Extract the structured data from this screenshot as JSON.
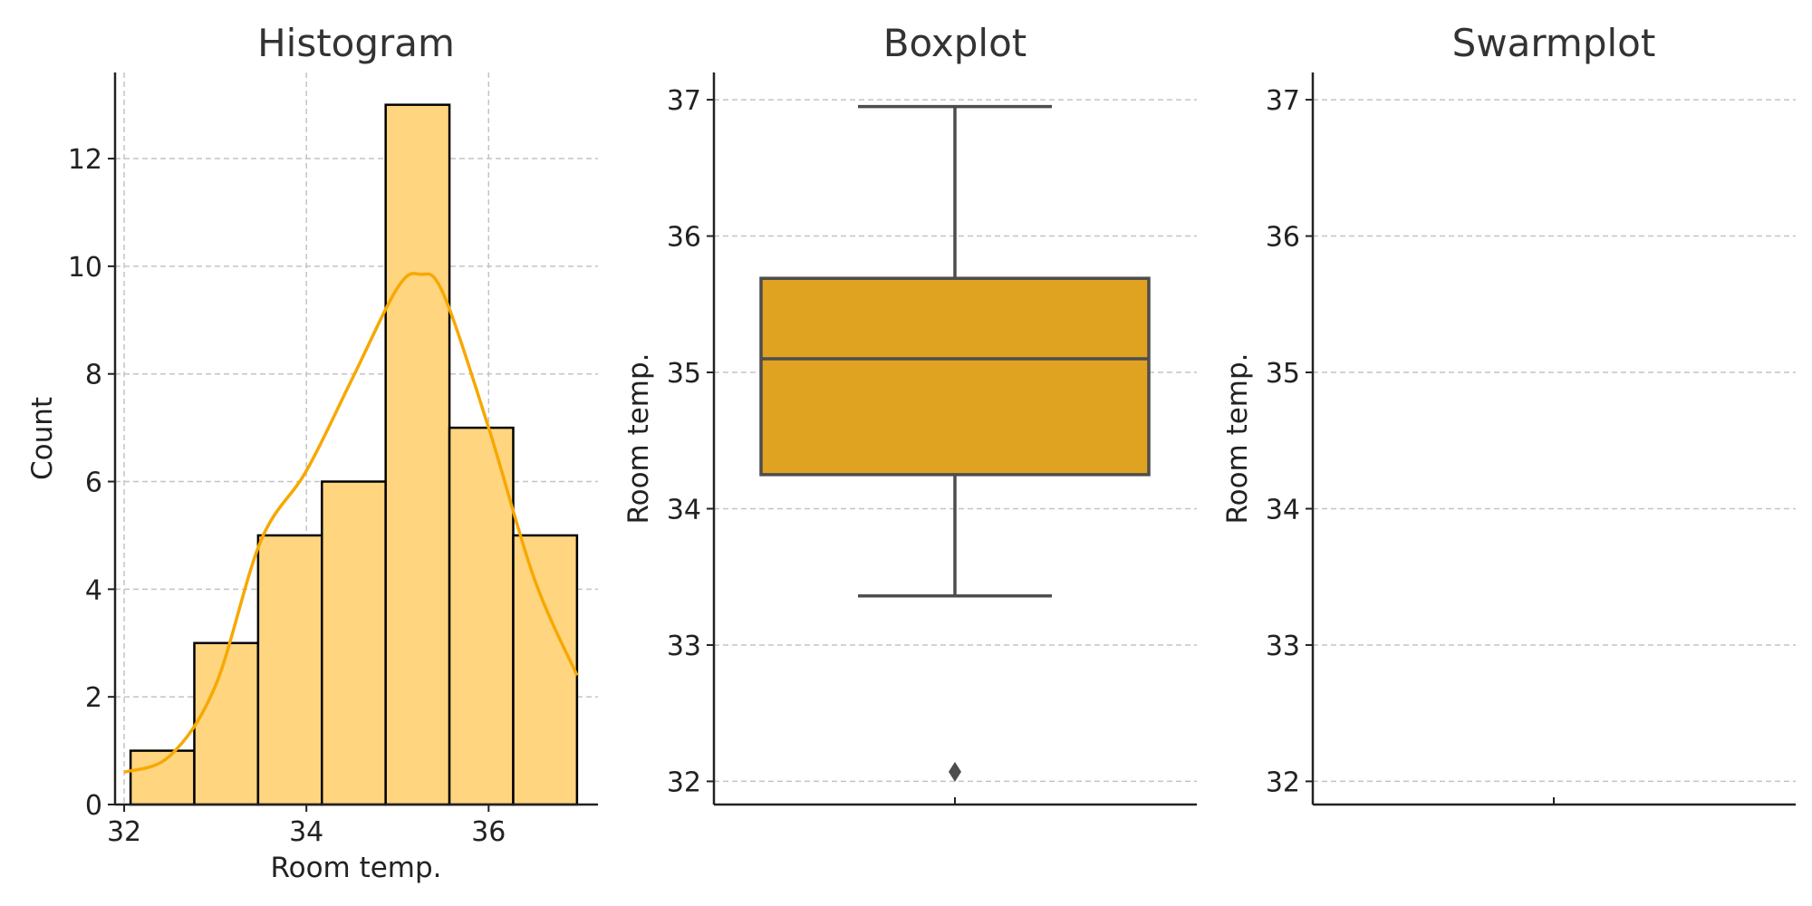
{
  "chart_data": [
    {
      "type": "histogram",
      "title": "Histogram",
      "xlabel": "Room temp.",
      "ylabel": "Count",
      "bin_edges": [
        32.07,
        32.77,
        33.47,
        34.17,
        34.87,
        35.57,
        36.27,
        36.97
      ],
      "counts": [
        1,
        3,
        5,
        6,
        13,
        7,
        5
      ],
      "kde": {
        "x": [
          32.0,
          32.5,
          33.0,
          33.5,
          34.0,
          34.5,
          35.0,
          35.25,
          35.5,
          36.0,
          36.5,
          36.97
        ],
        "y": [
          0.6,
          0.9,
          2.2,
          4.9,
          6.2,
          7.9,
          9.6,
          9.85,
          9.5,
          7.0,
          4.2,
          2.4
        ]
      },
      "xlim": [
        31.9,
        37.2
      ],
      "ylim": [
        0,
        13.6
      ],
      "xticks": [
        32,
        34,
        36
      ],
      "yticks": [
        0,
        2,
        4,
        6,
        8,
        10,
        12
      ],
      "grid": true,
      "colors": {
        "bar_fill": "#FFD580",
        "bar_edge": "#000000",
        "kde": "#F7A800"
      }
    },
    {
      "type": "box",
      "title": "Boxplot",
      "xlabel": "",
      "ylabel": "Room temp.",
      "min": 33.36,
      "q1": 34.25,
      "median": 35.1,
      "q3": 35.69,
      "max": 36.95,
      "outliers": [
        32.07
      ],
      "ylim": [
        31.83,
        37.2
      ],
      "yticks": [
        32,
        33,
        34,
        35,
        36,
        37
      ],
      "grid": true,
      "colors": {
        "box_fill": "#DFA321",
        "line": "#4d4d4d"
      }
    },
    {
      "type": "swarm",
      "title": "Swarmplot",
      "xlabel": "",
      "ylabel": "Room temp.",
      "points": [],
      "ylim": [
        31.83,
        37.2
      ],
      "yticks": [
        32,
        33,
        34,
        35,
        36,
        37
      ],
      "grid": true
    }
  ]
}
